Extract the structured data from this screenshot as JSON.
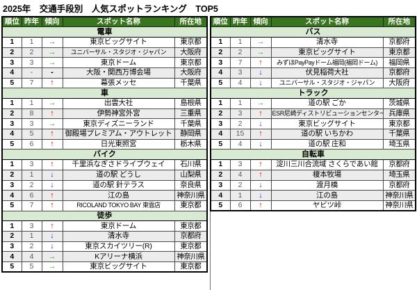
{
  "title": "2025年　交通手段別　人気スポットランキング　TOP5",
  "columns": [
    "順位",
    "昨年",
    "傾向",
    "スポット名称",
    "所在地"
  ],
  "trend_glyphs": {
    "up": "↑",
    "down": "↓",
    "same": "→",
    "none": "-"
  },
  "colors": {
    "header_bg": "#38761d",
    "header_text": "#ffffff",
    "section_bg": "#d9ead3",
    "alt_row_bg": "#ececec",
    "trend_up": "#e00000",
    "trend_down": "#2626d9",
    "trend_same": "#3d9440",
    "trend_none": "#000000"
  },
  "left_sections": [
    {
      "name": "電車",
      "rows": [
        {
          "rank": "1",
          "last_year": "1",
          "trend": "same",
          "name": "東京ビッグサイト",
          "location": "東京都"
        },
        {
          "rank": "2",
          "last_year": "2",
          "trend": "same",
          "name": "ユニバーサル・スタジオ・ジャパン",
          "location": "大阪府"
        },
        {
          "rank": "3",
          "last_year": "3",
          "trend": "same",
          "name": "東京ドーム",
          "location": "東京都"
        },
        {
          "rank": "4",
          "last_year": "-",
          "trend": "none",
          "name": "大阪・関西万博会場",
          "location": "大阪府"
        },
        {
          "rank": "5",
          "last_year": "7",
          "trend": "up",
          "name": "幕張メッセ",
          "location": "千葉県"
        }
      ]
    },
    {
      "name": "車",
      "rows": [
        {
          "rank": "1",
          "last_year": "1",
          "trend": "same",
          "name": "出雲大社",
          "location": "島根県"
        },
        {
          "rank": "2",
          "last_year": "8",
          "trend": "up",
          "name": "伊勢神宮外宮",
          "location": "三重県"
        },
        {
          "rank": "3",
          "last_year": "3",
          "trend": "same",
          "name": "東京ディズニーランド",
          "location": "千葉県"
        },
        {
          "rank": "4",
          "last_year": "5",
          "trend": "up",
          "name": "御殿場プレミアム・アウトレット",
          "location": "静岡県"
        },
        {
          "rank": "5",
          "last_year": "6",
          "trend": "up",
          "name": "日光東照宮",
          "location": "栃木県"
        }
      ]
    },
    {
      "name": "バイク",
      "rows": [
        {
          "rank": "1",
          "last_year": "3",
          "trend": "up",
          "name": "千里浜なぎさドライブウェイ",
          "location": "石川県"
        },
        {
          "rank": "2",
          "last_year": "1",
          "trend": "down",
          "name": "道の駅 どうし",
          "location": "山梨県"
        },
        {
          "rank": "3",
          "last_year": "2",
          "trend": "down",
          "name": "道の駅 針テラス",
          "location": "奈良県"
        },
        {
          "rank": "4",
          "last_year": "6",
          "trend": "up",
          "name": "江の島",
          "location": "神奈川県"
        },
        {
          "rank": "5",
          "last_year": "7",
          "trend": "up",
          "name": "RICOLAND TOKYO BAY 東雲店",
          "location": "東京都"
        }
      ]
    },
    {
      "name": "徒歩",
      "rows": [
        {
          "rank": "1",
          "last_year": "3",
          "trend": "up",
          "name": "東京ドーム",
          "location": "東京都"
        },
        {
          "rank": "2",
          "last_year": "1",
          "trend": "down",
          "name": "清水寺",
          "location": "京都府"
        },
        {
          "rank": "3",
          "last_year": "2",
          "trend": "down",
          "name": "東京スカイツリー(R)",
          "location": "東京都"
        },
        {
          "rank": "4",
          "last_year": "4",
          "trend": "same",
          "name": "Kアリーナ横浜",
          "location": "神奈川県"
        },
        {
          "rank": "5",
          "last_year": "5",
          "trend": "same",
          "name": "東京ビッグサイト",
          "location": "東京都"
        }
      ]
    }
  ],
  "right_sections": [
    {
      "name": "バス",
      "rows": [
        {
          "rank": "1",
          "last_year": "1",
          "trend": "same",
          "name": "清水寺",
          "location": "京都府"
        },
        {
          "rank": "2",
          "last_year": "2",
          "trend": "same",
          "name": "東京ビッグサイト",
          "location": "東京都"
        },
        {
          "rank": "3",
          "last_year": "7",
          "trend": "up",
          "name": "みずほPayPayドーム福岡(福岡ドーム)",
          "location": "福岡県"
        },
        {
          "rank": "4",
          "last_year": "3",
          "trend": "down",
          "name": "伏見稲荷大社",
          "location": "京都府"
        },
        {
          "rank": "5",
          "last_year": "4",
          "trend": "down",
          "name": "ユニバーサル・スタジオ・ジャパン",
          "location": "大阪府"
        }
      ]
    },
    {
      "name": "トラック",
      "rows": [
        {
          "rank": "1",
          "last_year": "1",
          "trend": "same",
          "name": "道の駅 ごか",
          "location": "茨城県"
        },
        {
          "rank": "2",
          "last_year": "3",
          "trend": "up",
          "name": "ESR尼崎ディストリビューションセンター",
          "location": "兵庫県"
        },
        {
          "rank": "3",
          "last_year": "2",
          "trend": "down",
          "name": "東京ビッグサイト",
          "location": "東京都"
        },
        {
          "rank": "4",
          "last_year": "15",
          "trend": "up",
          "name": "道の駅 いちかわ",
          "location": "千葉県"
        },
        {
          "rank": "5",
          "last_year": "4",
          "trend": "down",
          "name": "道の駅 庄和",
          "location": "埼玉県"
        }
      ]
    },
    {
      "name": "自転車",
      "rows": [
        {
          "rank": "1",
          "last_year": "3",
          "trend": "up",
          "name": "淀川三川合流域 さくらであい館",
          "location": "京都府"
        },
        {
          "rank": "2",
          "last_year": "4",
          "trend": "up",
          "name": "榎本牧場",
          "location": "埼玉県"
        },
        {
          "rank": "3",
          "last_year": "2",
          "trend": "down",
          "name": "渡月橋",
          "location": "京都府"
        },
        {
          "rank": "4",
          "last_year": "1",
          "trend": "down",
          "name": "江の島",
          "location": "神奈川県"
        },
        {
          "rank": "5",
          "last_year": "6",
          "trend": "up",
          "name": "ヤビツ峠",
          "location": "神奈川県"
        }
      ]
    }
  ]
}
